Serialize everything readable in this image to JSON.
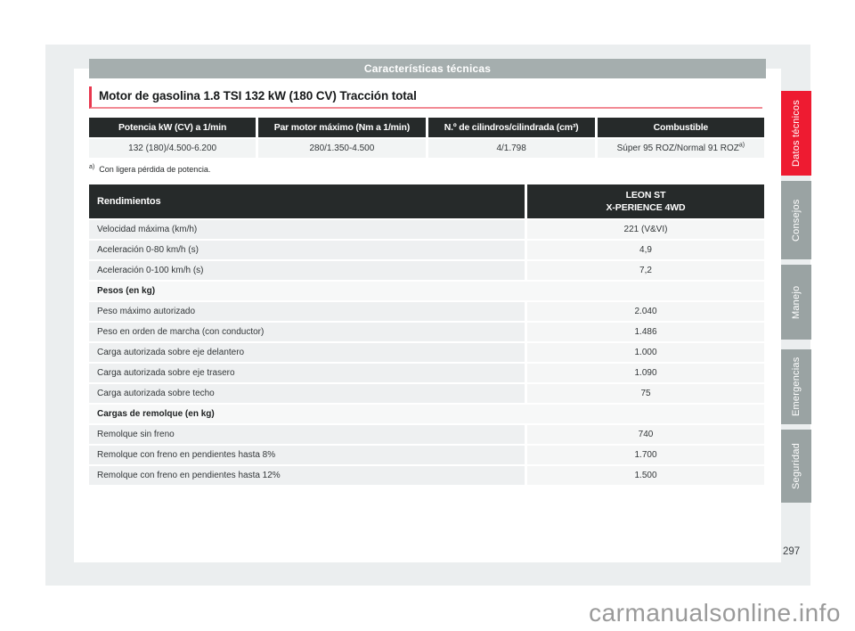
{
  "header_bar": {
    "title": "Características técnicas"
  },
  "section": {
    "title": "Motor de gasolina 1.8 TSI 132 kW (180 CV) Tracción total"
  },
  "engine_table": {
    "headers": [
      "Potencia kW (CV) a 1/min",
      "Par motor máximo (Nm a 1/min)",
      "N.º de cilindros/cilindrada (cm³)",
      "Combustible"
    ],
    "values": [
      "132 (180)/4.500-6.200",
      "280/1.350-4.500",
      "4/1.798"
    ],
    "fuel_value": "Súper 95 ROZ/Normal 91 ROZ",
    "fuel_footnote_marker": "a)"
  },
  "footnote": {
    "marker": "a)",
    "text": "Con ligera pérdida de potencia."
  },
  "performance_table": {
    "col_left_header": "Rendimientos",
    "col_right_header_line1": "LEON ST",
    "col_right_header_line2": "X-PERIENCE 4WD",
    "rows": [
      {
        "label": "Velocidad máxima (km/h)",
        "value": "221 (V&VI)"
      },
      {
        "label": "Aceleración 0-80 km/h (s)",
        "value": "4,9"
      },
      {
        "label": "Aceleración 0-100 km/h (s)",
        "value": "7,2"
      },
      {
        "label": "Pesos (en kg)",
        "value": "",
        "section": true
      },
      {
        "label": "Peso máximo autorizado",
        "value": "2.040"
      },
      {
        "label": "Peso en orden de marcha (con conductor)",
        "value": "1.486"
      },
      {
        "label": "Carga autorizada sobre eje delantero",
        "value": "1.000"
      },
      {
        "label": "Carga autorizada sobre eje trasero",
        "value": "1.090"
      },
      {
        "label": "Carga autorizada sobre techo",
        "value": "75"
      },
      {
        "label": "Cargas de remolque (en kg)",
        "value": "",
        "section": true
      },
      {
        "label": "Remolque sin freno",
        "value": "740"
      },
      {
        "label": "Remolque con freno en pendientes hasta 8%",
        "value": "1.700"
      },
      {
        "label": "Remolque con freno en pendientes hasta 12%",
        "value": "1.500"
      }
    ]
  },
  "sidebar_tabs": [
    {
      "label": "Datos técnicos",
      "active": true
    },
    {
      "label": "Consejos",
      "active": false
    },
    {
      "label": "Manejo",
      "active": false
    },
    {
      "label": "Emergencias",
      "active": false
    },
    {
      "label": "Seguridad",
      "active": false
    }
  ],
  "footer": {
    "page_number": "297",
    "watermark": "carmanualsonline.info"
  },
  "colors": {
    "accent_red": "#ee1b31",
    "title_border_red": "#e8374e",
    "title_underline_pink": "#f28b95",
    "table_header_dark": "#262a2a",
    "header_bar_gray": "#a5aeae",
    "tab_gray": "#9aa3a3",
    "page_bg_gray": "#ebeeef"
  }
}
